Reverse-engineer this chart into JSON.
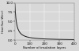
{
  "title": "",
  "xlabel": "Number of insulation layers",
  "ylabel": "Heat flux (W/m²)",
  "x_start": 0,
  "x_end": 400,
  "y_start": 0.0,
  "y_end": 10.0,
  "yticks": [
    0.0,
    2.5,
    5.0,
    7.5,
    10.0
  ],
  "xticks": [
    0,
    100,
    200,
    300,
    400
  ],
  "curve_color": "#1a1a1a",
  "bg_color": "#d8d8d8",
  "grid_color": "#ffffff",
  "line_width": 0.7,
  "a": 9.8,
  "k": 0.08
}
